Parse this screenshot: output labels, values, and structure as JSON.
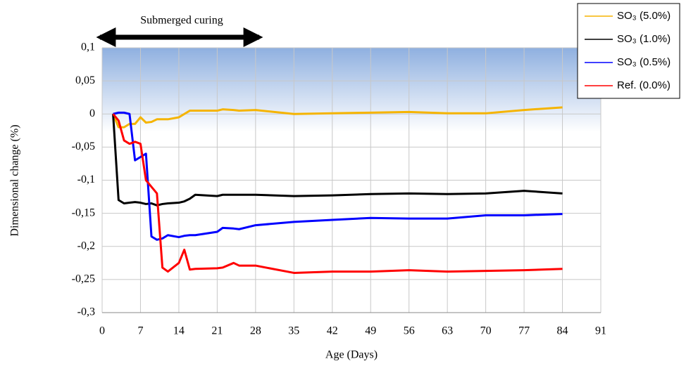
{
  "chart_data": {
    "type": "line",
    "annotation": "Submerged curing",
    "x_label": "Age (Days)",
    "y_label": "Dimensional  change  (%)",
    "xlim": [
      0,
      91
    ],
    "xticks": [
      0,
      7,
      14,
      21,
      28,
      35,
      42,
      49,
      56,
      63,
      70,
      77,
      84,
      91
    ],
    "ylim": [
      -0.3,
      0.1
    ],
    "yticks": [
      {
        "value": -0.3,
        "label": "-0,3"
      },
      {
        "value": -0.25,
        "label": "-0,25"
      },
      {
        "value": -0.2,
        "label": "-0,2"
      },
      {
        "value": -0.15,
        "label": "-0,15"
      },
      {
        "value": -0.1,
        "label": "-0,1"
      },
      {
        "value": -0.05,
        "label": "-0,05"
      },
      {
        "value": 0,
        "label": "0"
      },
      {
        "value": 0.05,
        "label": "0,05"
      },
      {
        "value": 0.1,
        "label": "0,1"
      }
    ],
    "grid": true,
    "x": [
      2,
      3,
      4,
      5,
      6,
      7,
      8,
      9,
      10,
      11,
      12,
      14,
      15,
      16,
      17,
      21,
      22,
      24,
      25,
      28,
      35,
      42,
      49,
      56,
      63,
      70,
      77,
      84
    ],
    "series": [
      {
        "name": "SO₃ (5.0%)",
        "color": "#f5b400",
        "values": [
          0,
          -0.02,
          -0.02,
          -0.015,
          -0.015,
          -0.005,
          -0.013,
          -0.012,
          -0.008,
          -0.008,
          -0.008,
          -0.005,
          0,
          0.005,
          0.005,
          0.005,
          0.007,
          0.006,
          0.005,
          0.006,
          0,
          0.001,
          0.002,
          0.003,
          0.001,
          0.001,
          0.006,
          0.01
        ]
      },
      {
        "name": "SO₃ (1.0%)",
        "color": "#000000",
        "values": [
          0,
          -0.13,
          -0.135,
          -0.134,
          -0.133,
          -0.134,
          -0.136,
          -0.135,
          -0.138,
          -0.136,
          -0.135,
          -0.134,
          -0.132,
          -0.128,
          -0.122,
          -0.124,
          -0.122,
          -0.122,
          -0.122,
          -0.122,
          -0.124,
          -0.123,
          -0.121,
          -0.12,
          -0.121,
          -0.12,
          -0.116,
          -0.12
        ]
      },
      {
        "name": "SO₃ (0.5%)",
        "color": "#0000ff",
        "values": [
          0,
          0.002,
          0.002,
          0,
          -0.07,
          -0.065,
          -0.06,
          -0.185,
          -0.19,
          -0.188,
          -0.183,
          -0.186,
          -0.184,
          -0.183,
          -0.183,
          -0.178,
          -0.172,
          -0.173,
          -0.174,
          -0.168,
          -0.163,
          -0.16,
          -0.157,
          -0.158,
          -0.158,
          -0.153,
          -0.153,
          -0.151
        ]
      },
      {
        "name": "Ref. (0.0%)",
        "color": "#ff0000",
        "values": [
          0,
          -0.01,
          -0.04,
          -0.045,
          -0.042,
          -0.045,
          -0.1,
          -0.11,
          -0.12,
          -0.232,
          -0.238,
          -0.225,
          -0.205,
          -0.235,
          -0.234,
          -0.233,
          -0.232,
          -0.225,
          -0.229,
          -0.229,
          -0.24,
          -0.238,
          -0.238,
          -0.236,
          -0.238,
          -0.237,
          -0.236,
          -0.234
        ]
      }
    ]
  }
}
